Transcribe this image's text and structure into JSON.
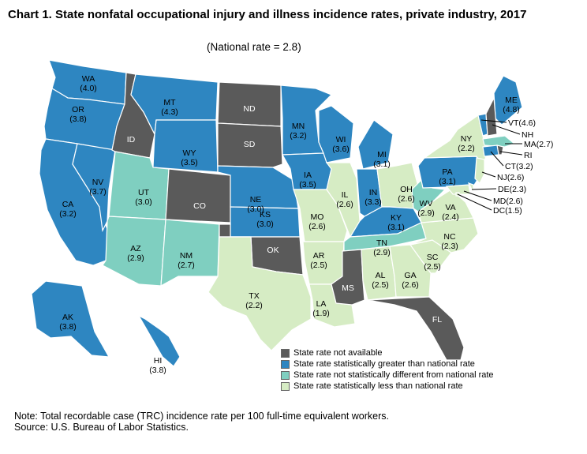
{
  "title": "Chart 1. State nonfatal occupational injury and illness incidence rates, private industry, 2017",
  "subtitle": "(National rate = 2.8)",
  "colors": {
    "not_available": "#5a5a5a",
    "greater": "#2e86c1",
    "not_different": "#7fcfc0",
    "less": "#d6ecc4",
    "border": "#ffffff"
  },
  "legend": [
    {
      "key": "not_available",
      "label": "State rate not available"
    },
    {
      "key": "greater",
      "label": "State rate statistically greater than national rate"
    },
    {
      "key": "not_different",
      "label": "State rate not statistically different from national rate"
    },
    {
      "key": "less",
      "label": "State rate statistically less than national rate"
    }
  ],
  "note": "Note: Total recordable case (TRC) incidence rate per 100 full-time equivalent workers.",
  "source": "Source: U.S. Bureau of Labor Statistics.",
  "states": [
    {
      "abbr": "WA",
      "rate": "(4.0)",
      "cat": "greater"
    },
    {
      "abbr": "OR",
      "rate": "(3.8)",
      "cat": "greater"
    },
    {
      "abbr": "CA",
      "rate": "(3.2)",
      "cat": "greater"
    },
    {
      "abbr": "NV",
      "rate": "(3.7)",
      "cat": "greater"
    },
    {
      "abbr": "ID",
      "rate": "",
      "cat": "not_available"
    },
    {
      "abbr": "MT",
      "rate": "(4.3)",
      "cat": "greater"
    },
    {
      "abbr": "WY",
      "rate": "(3.5)",
      "cat": "greater"
    },
    {
      "abbr": "UT",
      "rate": "(3.0)",
      "cat": "not_different"
    },
    {
      "abbr": "AZ",
      "rate": "(2.9)",
      "cat": "not_different"
    },
    {
      "abbr": "CO",
      "rate": "",
      "cat": "not_available"
    },
    {
      "abbr": "NM",
      "rate": "(2.7)",
      "cat": "not_different"
    },
    {
      "abbr": "ND",
      "rate": "",
      "cat": "not_available"
    },
    {
      "abbr": "SD",
      "rate": "",
      "cat": "not_available"
    },
    {
      "abbr": "NE",
      "rate": "(3.0)",
      "cat": "greater"
    },
    {
      "abbr": "KS",
      "rate": "(3.0)",
      "cat": "greater"
    },
    {
      "abbr": "OK",
      "rate": "",
      "cat": "not_available"
    },
    {
      "abbr": "TX",
      "rate": "(2.2)",
      "cat": "less"
    },
    {
      "abbr": "MN",
      "rate": "(3.2)",
      "cat": "greater"
    },
    {
      "abbr": "IA",
      "rate": "(3.5)",
      "cat": "greater"
    },
    {
      "abbr": "MO",
      "rate": "(2.6)",
      "cat": "less"
    },
    {
      "abbr": "AR",
      "rate": "(2.5)",
      "cat": "less"
    },
    {
      "abbr": "LA",
      "rate": "(1.9)",
      "cat": "less"
    },
    {
      "abbr": "WI",
      "rate": "(3.6)",
      "cat": "greater"
    },
    {
      "abbr": "IL",
      "rate": "(2.6)",
      "cat": "less"
    },
    {
      "abbr": "MI",
      "rate": "(3.1)",
      "cat": "greater"
    },
    {
      "abbr": "IN",
      "rate": "(3.3)",
      "cat": "greater"
    },
    {
      "abbr": "OH",
      "rate": "(2.6)",
      "cat": "less"
    },
    {
      "abbr": "KY",
      "rate": "(3.1)",
      "cat": "greater"
    },
    {
      "abbr": "TN",
      "rate": "(2.9)",
      "cat": "not_different"
    },
    {
      "abbr": "MS",
      "rate": "",
      "cat": "not_available"
    },
    {
      "abbr": "AL",
      "rate": "(2.5)",
      "cat": "less"
    },
    {
      "abbr": "GA",
      "rate": "(2.6)",
      "cat": "less"
    },
    {
      "abbr": "FL",
      "rate": "",
      "cat": "not_available"
    },
    {
      "abbr": "SC",
      "rate": "(2.5)",
      "cat": "less"
    },
    {
      "abbr": "NC",
      "rate": "(2.3)",
      "cat": "less"
    },
    {
      "abbr": "VA",
      "rate": "(2.4)",
      "cat": "less"
    },
    {
      "abbr": "WV",
      "rate": "(2.9)",
      "cat": "not_different"
    },
    {
      "abbr": "PA",
      "rate": "(3.1)",
      "cat": "greater"
    },
    {
      "abbr": "NY",
      "rate": "(2.2)",
      "cat": "less"
    },
    {
      "abbr": "ME",
      "rate": "(4.8)",
      "cat": "greater"
    },
    {
      "abbr": "AK",
      "rate": "(3.8)",
      "cat": "greater"
    },
    {
      "abbr": "HI",
      "rate": "(3.8)",
      "cat": "greater"
    },
    {
      "abbr": "VT",
      "rate": "(4.6)",
      "cat": "greater"
    },
    {
      "abbr": "NH",
      "rate": "",
      "cat": "not_available"
    },
    {
      "abbr": "MA",
      "rate": "(2.7)",
      "cat": "not_different"
    },
    {
      "abbr": "RI",
      "rate": "",
      "cat": "not_available"
    },
    {
      "abbr": "CT",
      "rate": "(3.2)",
      "cat": "greater"
    },
    {
      "abbr": "NJ",
      "rate": "(2.6)",
      "cat": "less"
    },
    {
      "abbr": "DE",
      "rate": "(2.3)",
      "cat": "less"
    },
    {
      "abbr": "MD",
      "rate": "(2.6)",
      "cat": "less"
    },
    {
      "abbr": "DC",
      "rate": "(1.5)",
      "cat": "less"
    }
  ]
}
